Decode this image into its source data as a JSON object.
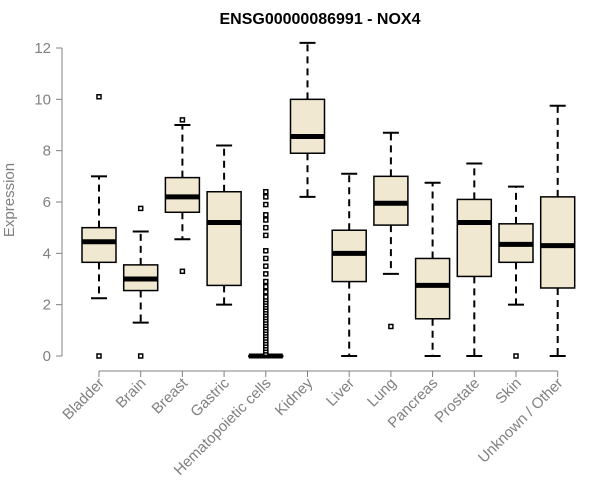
{
  "chart_data": {
    "type": "boxplot",
    "title": "ENSG00000086991 - NOX4",
    "xlabel": "",
    "ylabel": "Expression",
    "ylim": [
      0,
      12
    ],
    "yticks": [
      0,
      2,
      4,
      6,
      8,
      10,
      12
    ],
    "box_color": "#f0e8d0",
    "categories": [
      "Bladder",
      "Brain",
      "Breast",
      "Gastric",
      "Hematopoietic cells",
      "Kidney",
      "Liver",
      "Lung",
      "Pancreas",
      "Prostate",
      "Skin",
      "Unknown / Other"
    ],
    "boxes": [
      {
        "name": "Bladder",
        "whisker_low": 2.25,
        "q1": 3.65,
        "median": 4.45,
        "q3": 5.0,
        "whisker_high": 7.0,
        "outliers": [
          0.0,
          10.1
        ]
      },
      {
        "name": "Brain",
        "whisker_low": 1.3,
        "q1": 2.55,
        "median": 3.0,
        "q3": 3.55,
        "whisker_high": 4.85,
        "outliers": [
          0.0,
          5.75
        ]
      },
      {
        "name": "Breast",
        "whisker_low": 4.55,
        "q1": 5.6,
        "median": 6.2,
        "q3": 6.95,
        "whisker_high": 9.0,
        "outliers": [
          3.3,
          9.2
        ]
      },
      {
        "name": "Gastric",
        "whisker_low": 2.0,
        "q1": 2.75,
        "median": 5.2,
        "q3": 6.4,
        "whisker_high": 8.2,
        "outliers": []
      },
      {
        "name": "Hematopoietic cells",
        "whisker_low": 0.0,
        "q1": 0.0,
        "median": 0.0,
        "q3": 0.0,
        "whisker_high": 0.0,
        "outliers": [
          0.1,
          0.2,
          0.3,
          0.4,
          0.5,
          0.6,
          0.7,
          0.8,
          0.9,
          1.0,
          1.1,
          1.2,
          1.3,
          1.4,
          1.5,
          1.6,
          1.7,
          1.8,
          1.9,
          2.0,
          2.1,
          2.2,
          2.3,
          2.5,
          2.7,
          2.9,
          3.2,
          3.5,
          3.8,
          4.1,
          4.7,
          5.0,
          5.3,
          5.5,
          5.9,
          6.2,
          6.4
        ]
      },
      {
        "name": "Kidney",
        "whisker_low": 6.2,
        "q1": 7.9,
        "median": 8.55,
        "q3": 10.0,
        "whisker_high": 12.2,
        "outliers": []
      },
      {
        "name": "Liver",
        "whisker_low": 0.0,
        "q1": 2.9,
        "median": 4.0,
        "q3": 4.9,
        "whisker_high": 7.1,
        "outliers": []
      },
      {
        "name": "Lung",
        "whisker_low": 3.2,
        "q1": 5.1,
        "median": 5.95,
        "q3": 7.0,
        "whisker_high": 8.7,
        "outliers": [
          1.15
        ]
      },
      {
        "name": "Pancreas",
        "whisker_low": 0.0,
        "q1": 1.45,
        "median": 2.75,
        "q3": 3.8,
        "whisker_high": 6.75,
        "outliers": []
      },
      {
        "name": "Prostate",
        "whisker_low": 0.0,
        "q1": 3.1,
        "median": 5.2,
        "q3": 6.1,
        "whisker_high": 7.5,
        "outliers": []
      },
      {
        "name": "Skin",
        "whisker_low": 2.0,
        "q1": 3.65,
        "median": 4.35,
        "q3": 5.15,
        "whisker_high": 6.6,
        "outliers": [
          0.0
        ]
      },
      {
        "name": "Unknown / Other",
        "whisker_low": 0.0,
        "q1": 2.65,
        "median": 4.3,
        "q3": 6.2,
        "whisker_high": 9.75,
        "outliers": []
      }
    ]
  }
}
